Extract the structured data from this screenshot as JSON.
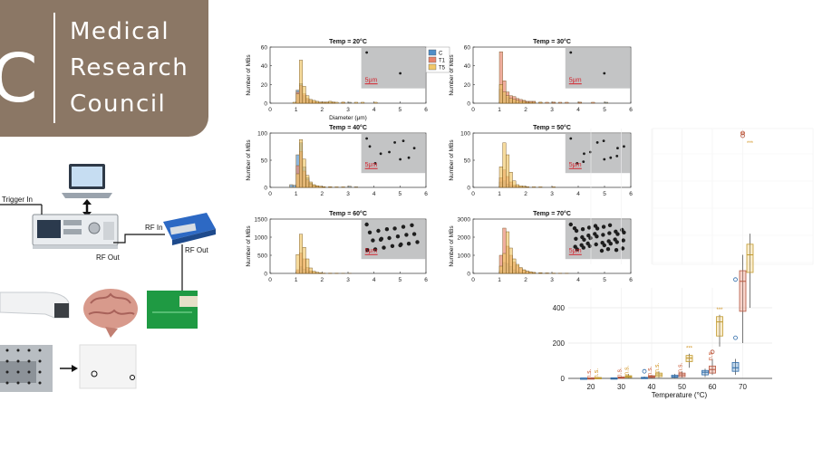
{
  "logo": {
    "glyph": "C",
    "words": [
      "Medical",
      "Research",
      "Council"
    ]
  },
  "setup": {
    "trigger_in": "Trigger In",
    "rf_in": "RF In",
    "rf_out_generator": "RF Out",
    "rf_out_amp": "RF Out"
  },
  "colors": {
    "logo_bg": "#8b7765",
    "C": "#4f8ec8",
    "T1": "#e8836a",
    "T5": "#f1c869",
    "overlap": "#c8891f",
    "sig": "#c9542e"
  },
  "histograms": {
    "legend": [
      "C",
      "T1",
      "T5"
    ],
    "xlabel": "Diameter (μm)",
    "ylabel": "Number of MBs",
    "scale_bar": "5μm",
    "xticks": [
      "0",
      "1",
      "2",
      "3",
      "4",
      "5",
      "6"
    ]
  },
  "chart_data": [
    {
      "type": "bar",
      "title": "Temp = 20°C",
      "ylim": [
        0,
        60
      ],
      "yticks": [
        "0",
        "20",
        "40",
        "60"
      ],
      "show_xlabel": true,
      "x": [
        0.75,
        0.875,
        1.0,
        1.125,
        1.25,
        1.375,
        1.5,
        1.625,
        1.75,
        1.875,
        2.0,
        2.125,
        2.25,
        2.375,
        2.5,
        2.75,
        3.0,
        3.25,
        3.5,
        4.0
      ],
      "series": [
        {
          "name": "C",
          "values": [
            0,
            0,
            14,
            21,
            8,
            4,
            2,
            1,
            1,
            1,
            1,
            1,
            1,
            1,
            0,
            0,
            1,
            0,
            0,
            0
          ]
        },
        {
          "name": "T1",
          "values": [
            0,
            0,
            12,
            19,
            10,
            5,
            3,
            2,
            1,
            1,
            1,
            1,
            0,
            1,
            0,
            1,
            0,
            0,
            0,
            0
          ]
        },
        {
          "name": "T5",
          "values": [
            0,
            1,
            10,
            46,
            18,
            8,
            4,
            3,
            2,
            1,
            1,
            1,
            2,
            1,
            1,
            1,
            0,
            1,
            1,
            1
          ]
        }
      ]
    },
    {
      "type": "bar",
      "title": "Temp = 30°C",
      "ylim": [
        0,
        60
      ],
      "yticks": [
        "0",
        "20",
        "40",
        "60"
      ],
      "show_xlabel": false,
      "x": [
        1.0,
        1.125,
        1.25,
        1.375,
        1.5,
        1.625,
        1.75,
        1.875,
        2.0,
        2.125,
        2.25,
        2.5,
        2.75,
        3.0,
        3.25,
        3.5,
        4.0,
        4.5,
        5.0
      ],
      "series": [
        {
          "name": "C",
          "values": [
            15,
            10,
            6,
            3,
            2,
            1,
            1,
            1,
            1,
            0,
            0,
            0,
            0,
            1,
            0,
            0,
            1,
            0,
            1
          ]
        },
        {
          "name": "T1",
          "values": [
            55,
            24,
            12,
            8,
            7,
            5,
            4,
            3,
            2,
            2,
            2,
            1,
            1,
            1,
            1,
            1,
            1,
            1,
            0
          ]
        },
        {
          "name": "T5",
          "values": [
            20,
            12,
            8,
            5,
            4,
            3,
            2,
            2,
            1,
            1,
            1,
            1,
            0,
            0,
            0,
            0,
            0,
            0,
            0
          ]
        }
      ]
    },
    {
      "type": "bar",
      "title": "Temp = 40°C",
      "ylim": [
        0,
        100
      ],
      "yticks": [
        "0",
        "50",
        "100"
      ],
      "show_xlabel": false,
      "x": [
        0.75,
        0.875,
        1.0,
        1.125,
        1.25,
        1.375,
        1.5,
        1.625,
        1.75,
        1.875,
        2.0,
        2.25,
        2.5,
        2.75,
        3.0,
        3.25
      ],
      "series": [
        {
          "name": "C",
          "values": [
            5,
            4,
            60,
            82,
            38,
            18,
            8,
            4,
            2,
            1,
            1,
            1,
            0,
            0,
            2,
            1
          ]
        },
        {
          "name": "T1",
          "values": [
            0,
            0,
            40,
            66,
            30,
            14,
            6,
            3,
            2,
            1,
            1,
            0,
            0,
            0,
            0,
            0
          ]
        },
        {
          "name": "T5",
          "values": [
            0,
            0,
            25,
            88,
            52,
            22,
            10,
            5,
            3,
            2,
            1,
            1,
            1,
            1,
            0,
            0
          ]
        }
      ]
    },
    {
      "type": "bar",
      "title": "Temp = 50°C",
      "ylim": [
        0,
        100
      ],
      "yticks": [
        "0",
        "50",
        "100"
      ],
      "show_xlabel": false,
      "x": [
        1.0,
        1.125,
        1.25,
        1.375,
        1.5,
        1.625,
        1.75,
        1.875,
        2.0,
        2.25,
        2.5,
        2.75,
        3.0
      ],
      "series": [
        {
          "name": "C",
          "values": [
            10,
            12,
            6,
            4,
            2,
            1,
            1,
            1,
            0,
            0,
            0,
            0,
            0
          ]
        },
        {
          "name": "T1",
          "values": [
            18,
            32,
            20,
            10,
            4,
            2,
            1,
            1,
            1,
            0,
            0,
            0,
            0
          ]
        },
        {
          "name": "T5",
          "values": [
            38,
            82,
            60,
            28,
            12,
            5,
            3,
            2,
            1,
            1,
            1,
            0,
            1
          ]
        }
      ]
    },
    {
      "type": "bar",
      "title": "Temp = 60°C",
      "ylim": [
        0,
        1500
      ],
      "yticks": [
        "0",
        "500",
        "1000",
        "1500"
      ],
      "show_xlabel": false,
      "x": [
        1.0,
        1.125,
        1.25,
        1.375,
        1.5,
        1.625,
        1.75,
        1.875,
        2.0,
        2.25,
        2.5,
        2.75,
        3.0
      ],
      "series": [
        {
          "name": "C",
          "values": [
            60,
            180,
            120,
            60,
            30,
            15,
            8,
            4,
            2,
            1,
            1,
            0,
            0
          ]
        },
        {
          "name": "T1",
          "values": [
            100,
            560,
            400,
            160,
            70,
            30,
            15,
            8,
            4,
            2,
            1,
            0,
            0
          ]
        },
        {
          "name": "T5",
          "values": [
            520,
            1080,
            720,
            400,
            150,
            60,
            30,
            15,
            8,
            5,
            3,
            2,
            1
          ]
        }
      ]
    },
    {
      "type": "bar",
      "title": "Temp = 70°C",
      "ylim": [
        0,
        3000
      ],
      "yticks": [
        "0",
        "1000",
        "2000",
        "3000"
      ],
      "show_xlabel": false,
      "x": [
        1.0,
        1.125,
        1.25,
        1.375,
        1.5,
        1.625,
        1.75,
        1.875,
        2.0,
        2.125,
        2.25,
        2.5,
        2.75,
        3.0,
        3.25,
        3.5
      ],
      "series": [
        {
          "name": "C",
          "values": [
            150,
            600,
            550,
            380,
            200,
            120,
            70,
            40,
            20,
            10,
            6,
            3,
            2,
            1,
            0,
            0
          ]
        },
        {
          "name": "T1",
          "values": [
            1000,
            2500,
            1500,
            1000,
            620,
            420,
            300,
            180,
            120,
            80,
            50,
            30,
            20,
            10,
            5,
            2
          ]
        },
        {
          "name": "T5",
          "values": [
            400,
            1100,
            2300,
            1400,
            800,
            500,
            320,
            200,
            120,
            80,
            50,
            30,
            20,
            10,
            5,
            2
          ]
        }
      ]
    },
    {
      "type": "box",
      "xlabel": "Temperature (°C)",
      "categories": [
        "20",
        "30",
        "40",
        "50",
        "60",
        "70"
      ],
      "yticks": [
        "0",
        "200",
        "400"
      ],
      "ylim_visible": [
        0,
        500
      ],
      "series": [
        {
          "name": "C",
          "boxes": [
            [
              0,
              0,
              1,
              2,
              3
            ],
            [
              0,
              1,
              2,
              3,
              5
            ],
            [
              1,
              2,
              3,
              6,
              10
            ],
            [
              3,
              6,
              10,
              18,
              25
            ],
            [
              8,
              20,
              35,
              45,
              55
            ],
            [
              20,
              40,
              60,
              90,
              110
            ]
          ],
          "outliers": [
            [],
            [],
            [
              40
            ],
            [],
            [],
            [
              230,
              560
            ]
          ]
        },
        {
          "name": "T1",
          "boxes": [
            [
              0,
              1,
              2,
              3,
              5
            ],
            [
              0,
              2,
              4,
              8,
              12
            ],
            [
              2,
              5,
              10,
              15,
              20
            ],
            [
              5,
              10,
              20,
              30,
              40
            ],
            [
              20,
              30,
              50,
              70,
              110
            ],
            [
              200,
              380,
              550,
              610,
              700
            ]
          ],
          "outliers": [
            [],
            [],
            [],
            [],
            [
              150
            ],
            [
              1180,
              1240
            ]
          ]
        },
        {
          "name": "T5",
          "boxes": [
            [
              0,
              1,
              3,
              5,
              8
            ],
            [
              2,
              5,
              10,
              15,
              25
            ],
            [
              4,
              10,
              20,
              30,
              40
            ],
            [
              60,
              95,
              115,
              130,
              140
            ],
            [
              180,
              240,
              320,
              350,
              360
            ],
            [
              400,
              600,
              700,
              760,
              820
            ]
          ],
          "outliers": [
            [],
            [],
            [],
            [],
            [],
            []
          ]
        }
      ],
      "annotations": [
        {
          "cat": "20",
          "labels": [
            "n.s.",
            "n.s."
          ]
        },
        {
          "cat": "30",
          "labels": [
            "n.s.",
            "n.s."
          ]
        },
        {
          "cat": "40",
          "labels": [
            "n.s.",
            "n.s."
          ]
        },
        {
          "cat": "50",
          "labels": [
            "n.s.",
            "***"
          ]
        },
        {
          "cat": "60",
          "labels": [
            "n.s.",
            "***"
          ]
        },
        {
          "cat": "70",
          "labels": [
            "**",
            "***"
          ]
        }
      ]
    }
  ]
}
